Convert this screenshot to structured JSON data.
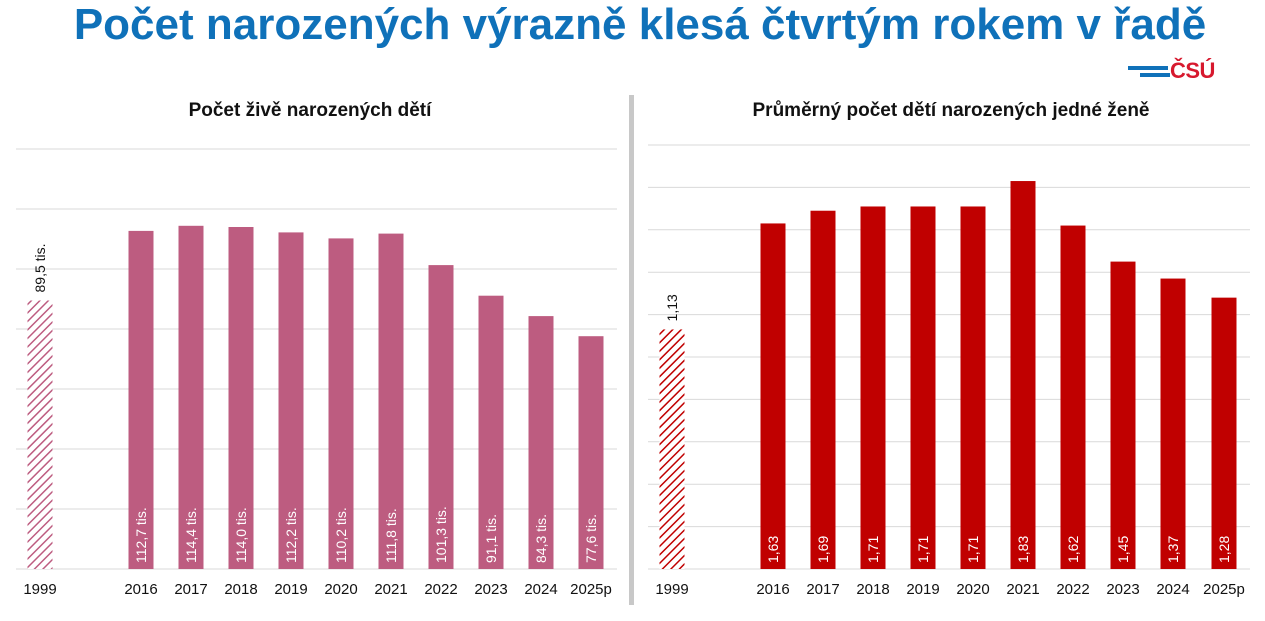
{
  "title": "Počet narozených výrazně klesá čtvrtým rokem v řadě",
  "logo_text": "ČSÚ",
  "colors": {
    "title": "#0f71b9",
    "left_bar": "#bd5c80",
    "right_bar": "#c00000",
    "gridline": "#d9d9d9",
    "divider": "#c8c8c8"
  },
  "chart_data": [
    {
      "type": "bar",
      "title": "Počet živě narozených dětí",
      "unit": "tis.",
      "categories": [
        "1999",
        "2016",
        "2017",
        "2018",
        "2019",
        "2020",
        "2021",
        "2022",
        "2023",
        "2024",
        "2025p"
      ],
      "values": [
        89.5,
        112.7,
        114.4,
        114.0,
        112.2,
        110.2,
        111.8,
        101.3,
        91.1,
        84.3,
        77.6
      ],
      "labels": [
        "89,5 tis.",
        "112,7 tis.",
        "114,4 tis.",
        "114,0 tis.",
        "112,2 tis.",
        "110,2 tis.",
        "111,8 tis.",
        "101,3 tis.",
        "91,1 tis.",
        "84,3 tis.",
        "77,6 tis."
      ],
      "hatched": [
        "1999"
      ],
      "ylim": [
        0,
        140
      ],
      "grid": true
    },
    {
      "type": "bar",
      "title": "Průměrný počet dětí narozených jedné ženě",
      "categories": [
        "1999",
        "2016",
        "2017",
        "2018",
        "2019",
        "2020",
        "2021",
        "2022",
        "2023",
        "2024",
        "2025p"
      ],
      "values": [
        1.13,
        1.63,
        1.69,
        1.71,
        1.71,
        1.71,
        1.83,
        1.62,
        1.45,
        1.37,
        1.28
      ],
      "labels": [
        "1,13",
        "1,63",
        "1,69",
        "1,71",
        "1,71",
        "1,71",
        "1,83",
        "1,62",
        "1,45",
        "1,37",
        "1,28"
      ],
      "hatched": [
        "1999"
      ],
      "ylim": [
        0,
        2.0
      ],
      "grid": true
    }
  ]
}
